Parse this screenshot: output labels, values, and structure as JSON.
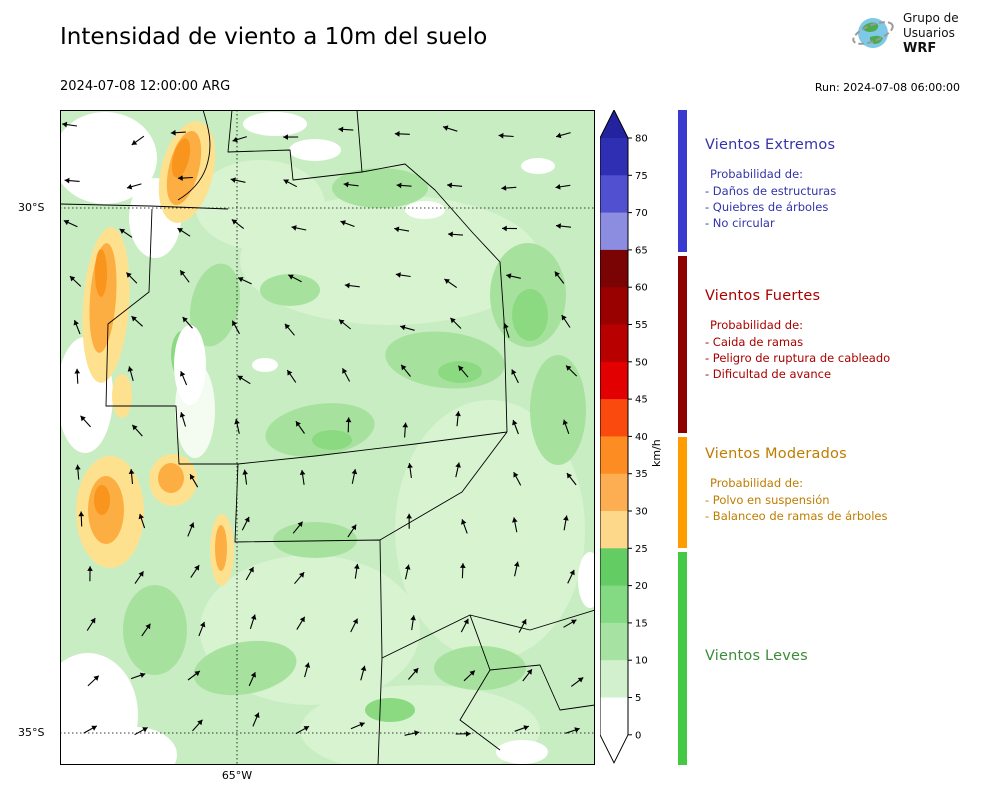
{
  "header": {
    "title": "Intensidad de viento a 10m del suelo",
    "valid_time": "2024-07-08 12:00:00 ARG",
    "run_label": "Run: 2024-07-08 06:00:00",
    "logo": {
      "line1": "Grupo de",
      "line2": "Usuarios",
      "line3": "WRF"
    }
  },
  "map": {
    "lat_labels": [
      "30°S",
      "35°S"
    ],
    "lon_labels": [
      "65°W"
    ]
  },
  "colorbar": {
    "unit": "km/h",
    "ticks": [
      "80",
      "75",
      "70",
      "65",
      "60",
      "55",
      "50",
      "45",
      "40",
      "35",
      "30",
      "25",
      "20",
      "15",
      "10",
      "5",
      "0"
    ],
    "segment_colors_top_to_bottom": [
      "#2f2fb3",
      "#5050d0",
      "#8c8ce0",
      "#7a0403",
      "#990000",
      "#b80000",
      "#e30000",
      "#fb4a0e",
      "#fd8c23",
      "#fdae53",
      "#fed88a",
      "#63cc63",
      "#84d983",
      "#a6e3a3",
      "#d2f0cd",
      "#ffffff"
    ],
    "arrow_top_color": "#23239f",
    "arrow_bottom_color": "#ffffff"
  },
  "legend": {
    "sections": [
      {
        "title": "Vientos Extremos",
        "color": "#3333aa",
        "strip_color": "#3a3ad1",
        "subtitle": "Probabilidad de:",
        "items": [
          "- Daños de estructuras",
          "- Quiebres de árboles",
          "- No circular"
        ]
      },
      {
        "title": "Vientos Fuertes",
        "color": "#aa0000",
        "strip_color": "#8e0000",
        "subtitle": "Probabilidad de:",
        "items": [
          "- Caida de ramas",
          "- Peligro de ruptura de cableado",
          "- Dificultad de avance"
        ]
      },
      {
        "title": "Vientos Moderados",
        "color": "#bf7d00",
        "strip_color": "#ff9d00",
        "subtitle": "Probabilidad de:",
        "items": [
          "- Polvo en suspensión",
          "- Balanceo de ramas de árboles"
        ]
      },
      {
        "title": "Vientos Leves",
        "color": "#3c8c3c",
        "strip_color": "#43c943",
        "subtitle": "",
        "items": []
      }
    ]
  },
  "chart_data": {
    "type": "heatmap",
    "title": "Intensidad de viento a 10m del suelo",
    "colorbar_unit": "km/h",
    "colorbar_ticks": [
      0,
      5,
      10,
      15,
      20,
      25,
      30,
      35,
      40,
      45,
      50,
      55,
      60,
      65,
      70,
      75,
      80
    ],
    "categories": [
      {
        "name": "Vientos Leves",
        "range_kmh": [
          0,
          25
        ]
      },
      {
        "name": "Vientos Moderados",
        "range_kmh": [
          25,
          40
        ]
      },
      {
        "name": "Vientos Fuertes",
        "range_kmh": [
          40,
          65
        ]
      },
      {
        "name": "Vientos Extremos",
        "range_kmh": [
          65,
          80
        ]
      }
    ],
    "x_ticks": [
      "65°W"
    ],
    "y_ticks": [
      "30°S",
      "35°S"
    ]
  }
}
